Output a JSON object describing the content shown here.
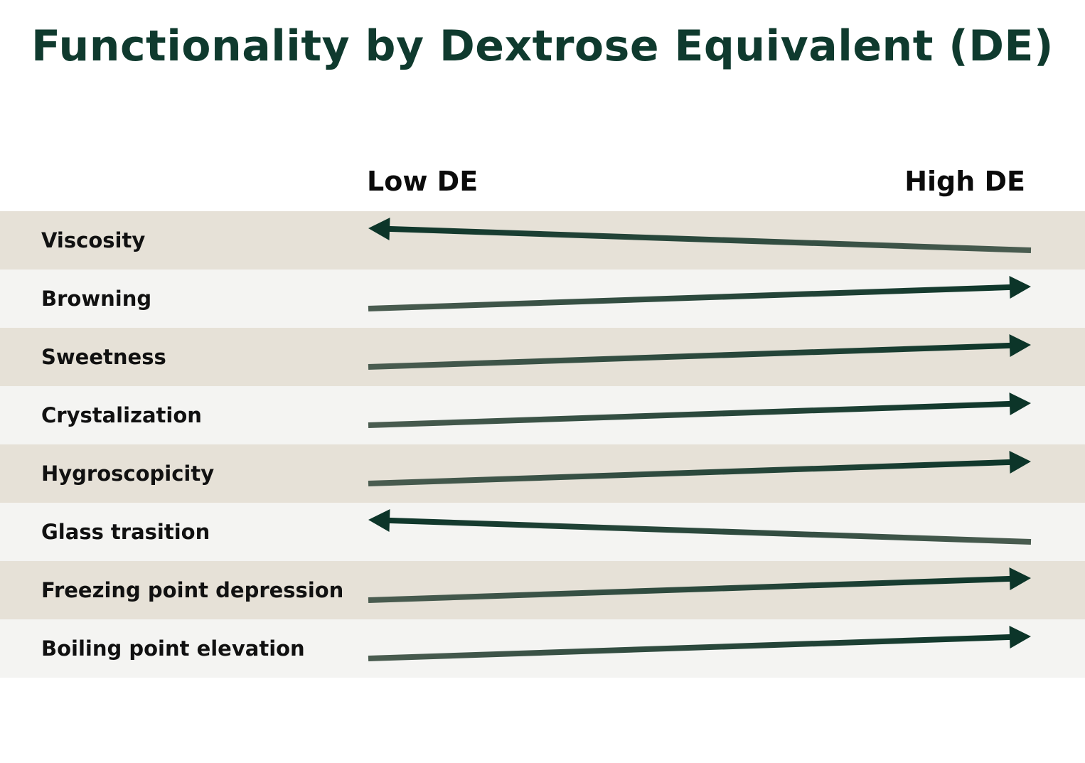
{
  "title": "Functionality by Dextrose Equivalent (DE)",
  "axis": {
    "low_label": "Low DE",
    "high_label": "High DE"
  },
  "rows": [
    {
      "label": "Viscosity",
      "direction": "toward-low"
    },
    {
      "label": "Browning",
      "direction": "toward-high"
    },
    {
      "label": "Sweetness",
      "direction": "toward-high"
    },
    {
      "label": "Crystalization",
      "direction": "toward-high"
    },
    {
      "label": "Hygroscopicity",
      "direction": "toward-high"
    },
    {
      "label": "Glass trasition",
      "direction": "toward-low"
    },
    {
      "label": "Freezing point depression",
      "direction": "toward-high"
    },
    {
      "label": "Boiling point elevation",
      "direction": "toward-high"
    }
  ],
  "colors": {
    "title": "#0f3a2e",
    "row_band_dark": "#e6e1d7",
    "row_band_light": "#f4f4f2",
    "arrow_head": "#0c3529",
    "arrow_tail": "#4a5c50"
  }
}
